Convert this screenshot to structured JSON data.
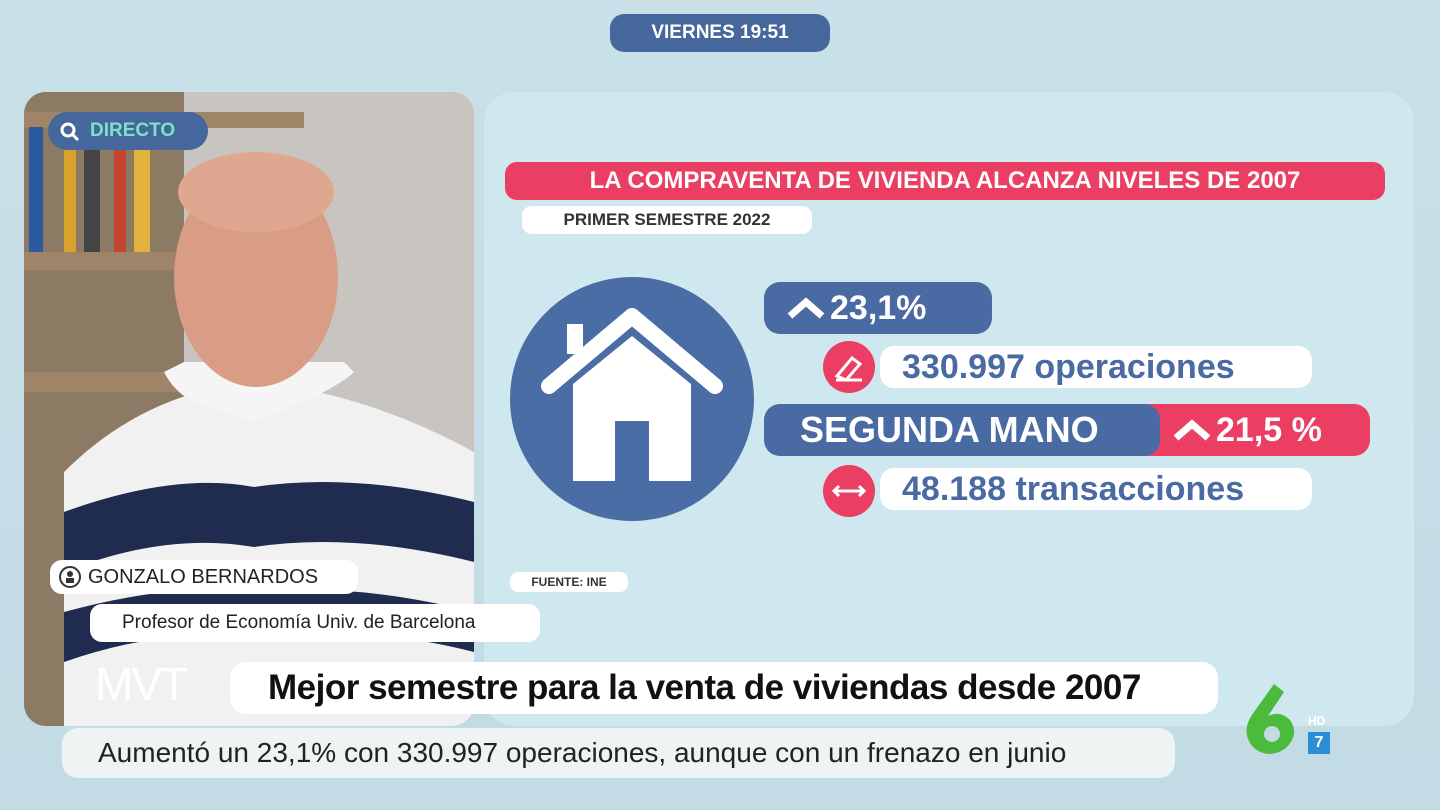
{
  "header": {
    "time": "VIERNES 19:51",
    "live": "DIRECTO"
  },
  "infographic": {
    "title": "LA COMPRAVENTA DE VIVIENDA ALCANZA NIVELES DE 2007",
    "subtitle": "PRIMER SEMESTRE 2022",
    "total": {
      "change": "23,1%",
      "operations": "330.997 operaciones"
    },
    "second_hand": {
      "label": "SEGUNDA MANO",
      "change": "21,5 %",
      "transactions": "48.188 transacciones"
    },
    "source": "FUENTE: INE"
  },
  "guest": {
    "name": "GONZALO BERNARDOS",
    "role": "Profesor de Economía Univ. de Barcelona"
  },
  "lower_third": {
    "logo": "MVT",
    "headline": "Mejor semestre para la venta de viviendas desde 2007",
    "subline": "Aumentó un 23,1% con 330.997 operaciones, aunque con un frenazo en junio"
  },
  "channel": {
    "quality": "HD",
    "number": "7"
  }
}
